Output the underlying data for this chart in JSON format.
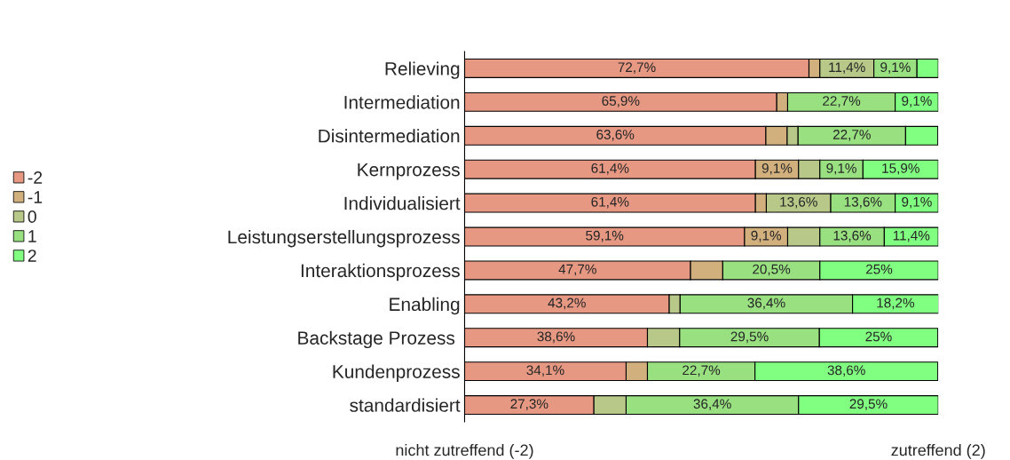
{
  "chart_data": {
    "type": "bar",
    "orientation": "horizontal",
    "stacked": true,
    "categories": [
      "Relieving",
      "Intermediation",
      "Disintermediation",
      "Kernprozess",
      "Individualisiert",
      "Leistungserstellungsprozess",
      "Interaktionsprozess",
      "Enabling",
      "Backstage Prozess ",
      "Kundenprozess",
      "standardisiert"
    ],
    "series": [
      {
        "name": "-2",
        "color": "#e69882",
        "values": [
          72.7,
          65.9,
          63.6,
          61.4,
          61.4,
          59.1,
          47.7,
          43.2,
          38.6,
          34.1,
          27.3
        ],
        "value_labels": [
          "72,7%",
          "65,9%",
          "63,6%",
          "61,4%",
          "61,4%",
          "59,1%",
          "47,7%",
          "43,2%",
          "38,6%",
          "34,1%",
          "27,3%"
        ]
      },
      {
        "name": "-1",
        "color": "#d2b07e",
        "values": [
          2.3,
          2.3,
          4.5,
          9.1,
          2.3,
          9.1,
          6.8,
          null,
          null,
          4.5,
          null
        ],
        "value_labels": [
          null,
          null,
          null,
          "9,1%",
          null,
          "9,1%",
          null,
          null,
          null,
          null,
          null
        ]
      },
      {
        "name": "0",
        "color": "#b8c888",
        "values": [
          11.4,
          null,
          2.3,
          4.5,
          13.6,
          6.8,
          null,
          2.3,
          6.8,
          null,
          6.8
        ],
        "value_labels": [
          "11,4%",
          null,
          null,
          null,
          "13,6%",
          null,
          null,
          null,
          null,
          null,
          null
        ]
      },
      {
        "name": "1",
        "color": "#98e080",
        "values": [
          9.1,
          22.7,
          22.7,
          9.1,
          13.6,
          13.6,
          20.5,
          36.4,
          29.5,
          22.7,
          36.4
        ],
        "value_labels": [
          "9,1%",
          "22,7%",
          "22,7%",
          "9,1%",
          "13,6%",
          "13,6%",
          "20,5%",
          "36,4%",
          "29,5%",
          "22,7%",
          "36,4%"
        ]
      },
      {
        "name": "2",
        "color": "#80ff80",
        "values": [
          4.5,
          9.1,
          6.8,
          15.9,
          9.1,
          11.4,
          25,
          18.2,
          25,
          38.6,
          29.5
        ],
        "value_labels": [
          null,
          "9,1%",
          null,
          "15,9%",
          "9,1%",
          "11,4%",
          "25%",
          "18,2%",
          "25%",
          "38,6%",
          "29,5%"
        ]
      }
    ],
    "xlim": [
      0,
      100
    ],
    "tick_labels": "y",
    "grid": false,
    "legend": "left",
    "annotations": [
      "nicht zutreffend (-2)",
      "zutreffend (2)"
    ]
  }
}
